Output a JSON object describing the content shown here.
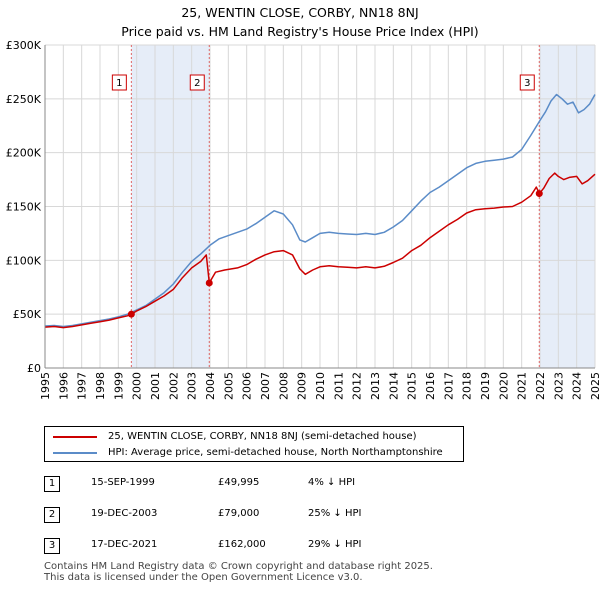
{
  "title_line1": "25, WENTIN CLOSE, CORBY, NN18 8NJ",
  "title_line2": "Price paid vs. HM Land Registry's House Price Index (HPI)",
  "chart_data": {
    "type": "line",
    "x_range": [
      1995,
      2025
    ],
    "ylim": [
      0,
      300000
    ],
    "y_ticks": [
      0,
      50000,
      100000,
      150000,
      200000,
      250000,
      300000
    ],
    "y_tick_labels": [
      "£0",
      "£50K",
      "£100K",
      "£150K",
      "£200K",
      "£250K",
      "£300K"
    ],
    "x_ticks": [
      1995,
      1996,
      1997,
      1998,
      1999,
      2000,
      2001,
      2002,
      2003,
      2004,
      2005,
      2006,
      2007,
      2008,
      2009,
      2010,
      2011,
      2012,
      2013,
      2014,
      2015,
      2016,
      2017,
      2018,
      2019,
      2020,
      2021,
      2022,
      2023,
      2024,
      2025
    ],
    "x_tick_labels": [
      "1995",
      "1996",
      "1997",
      "1998",
      "1999",
      "2000",
      "2001",
      "2002",
      "2003",
      "2004",
      "2005",
      "2006",
      "2007",
      "2008",
      "2009",
      "2010",
      "2011",
      "2012",
      "2013",
      "2014",
      "2015",
      "2016",
      "2017",
      "2018",
      "2019",
      "2020",
      "2021",
      "2022",
      "2023",
      "2024",
      "2025"
    ],
    "grid": true,
    "shaded_periods": [
      [
        1999.71,
        2003.96
      ],
      [
        2021.96,
        2025
      ]
    ],
    "series": [
      {
        "name": "25, WENTIN CLOSE, CORBY, NN18 8NJ (semi-detached house)",
        "color": "#cc0000",
        "x": [
          1995.0,
          1995.5,
          1996.0,
          1996.5,
          1997.0,
          1997.5,
          1998.0,
          1998.5,
          1999.0,
          1999.5,
          1999.71,
          2000.0,
          2000.5,
          2001.0,
          2001.5,
          2002.0,
          2002.5,
          2003.0,
          2003.5,
          2003.8,
          2003.96,
          2004.3,
          2004.8,
          2005.5,
          2006.0,
          2006.5,
          2007.0,
          2007.5,
          2008.0,
          2008.5,
          2008.9,
          2009.2,
          2009.6,
          2010.0,
          2010.5,
          2011.0,
          2011.5,
          2012.0,
          2012.5,
          2013.0,
          2013.5,
          2014.0,
          2014.5,
          2015.0,
          2015.5,
          2016.0,
          2016.5,
          2017.0,
          2017.5,
          2018.0,
          2018.5,
          2019.0,
          2019.5,
          2020.0,
          2020.5,
          2021.0,
          2021.5,
          2021.8,
          2021.96,
          2022.2,
          2022.5,
          2022.8,
          2023.0,
          2023.3,
          2023.6,
          2024.0,
          2024.3,
          2024.6,
          2025.0
        ],
        "y": [
          38000,
          38500,
          37500,
          38500,
          40000,
          41500,
          43000,
          44500,
          46500,
          48500,
          49995,
          53000,
          57000,
          62000,
          67000,
          73000,
          84000,
          93000,
          99000,
          105000,
          79000,
          89000,
          91000,
          93000,
          96000,
          101000,
          105000,
          108000,
          109000,
          105000,
          92000,
          87000,
          91000,
          94000,
          95000,
          94000,
          93500,
          93000,
          94000,
          93000,
          94500,
          98000,
          102000,
          109000,
          114000,
          121000,
          127000,
          133000,
          138000,
          144000,
          147000,
          148000,
          148500,
          149500,
          150000,
          154000,
          160000,
          168000,
          162000,
          167000,
          176000,
          181000,
          178000,
          175000,
          177000,
          178000,
          171000,
          174000,
          180000
        ]
      },
      {
        "name": "HPI: Average price, semi-detached house, North Northamptonshire",
        "color": "#5b8cc8",
        "x": [
          1995.0,
          1995.5,
          1996.0,
          1996.5,
          1997.0,
          1997.5,
          1998.0,
          1998.5,
          1999.0,
          1999.5,
          2000.0,
          2000.5,
          2001.0,
          2001.5,
          2002.0,
          2002.5,
          2003.0,
          2003.5,
          2004.0,
          2004.5,
          2005.0,
          2005.5,
          2006.0,
          2006.5,
          2007.0,
          2007.5,
          2008.0,
          2008.5,
          2008.9,
          2009.2,
          2009.6,
          2010.0,
          2010.5,
          2011.0,
          2011.5,
          2012.0,
          2012.5,
          2013.0,
          2013.5,
          2014.0,
          2014.5,
          2015.0,
          2015.5,
          2016.0,
          2016.5,
          2017.0,
          2017.5,
          2018.0,
          2018.5,
          2019.0,
          2019.5,
          2020.0,
          2020.5,
          2021.0,
          2021.5,
          2022.0,
          2022.3,
          2022.6,
          2022.9,
          2023.2,
          2023.5,
          2023.8,
          2024.1,
          2024.4,
          2024.7,
          2025.0
        ],
        "y": [
          39000,
          39500,
          38500,
          39500,
          41000,
          42500,
          44000,
          45500,
          47500,
          50000,
          54000,
          58000,
          64000,
          70000,
          78000,
          89000,
          99000,
          106000,
          114000,
          120000,
          123000,
          126000,
          129000,
          134000,
          140000,
          146000,
          143000,
          133000,
          119000,
          117000,
          121000,
          125000,
          126000,
          125000,
          124500,
          124000,
          125000,
          124000,
          126000,
          131000,
          137000,
          146000,
          155000,
          163000,
          168000,
          174000,
          180000,
          186000,
          190000,
          192000,
          193000,
          194000,
          196000,
          203000,
          216000,
          230000,
          238000,
          248000,
          254000,
          250000,
          245000,
          247000,
          237000,
          240000,
          245000,
          254000
        ]
      }
    ],
    "sales": [
      {
        "label": "1",
        "x": 1999.71,
        "y": 49995
      },
      {
        "label": "2",
        "x": 2003.96,
        "y": 79000
      },
      {
        "label": "3",
        "x": 2021.96,
        "y": 162000
      }
    ]
  },
  "legend": {
    "red_label": "25, WENTIN CLOSE, CORBY, NN18 8NJ (semi-detached house)",
    "blue_label": "HPI: Average price, semi-detached house, North Northamptonshire",
    "red_color": "#cc0000",
    "blue_color": "#5b8cc8"
  },
  "sales_table": [
    {
      "num": "1",
      "date": "15-SEP-1999",
      "price": "£49,995",
      "rel": "4% ↓ HPI"
    },
    {
      "num": "2",
      "date": "19-DEC-2003",
      "price": "£79,000",
      "rel": "25% ↓ HPI"
    },
    {
      "num": "3",
      "date": "17-DEC-2021",
      "price": "£162,000",
      "rel": "29% ↓ HPI"
    }
  ],
  "footer": {
    "line1": "Contains HM Land Registry data © Crown copyright and database right 2025.",
    "line2": "This data is licensed under the Open Government Licence v3.0."
  }
}
